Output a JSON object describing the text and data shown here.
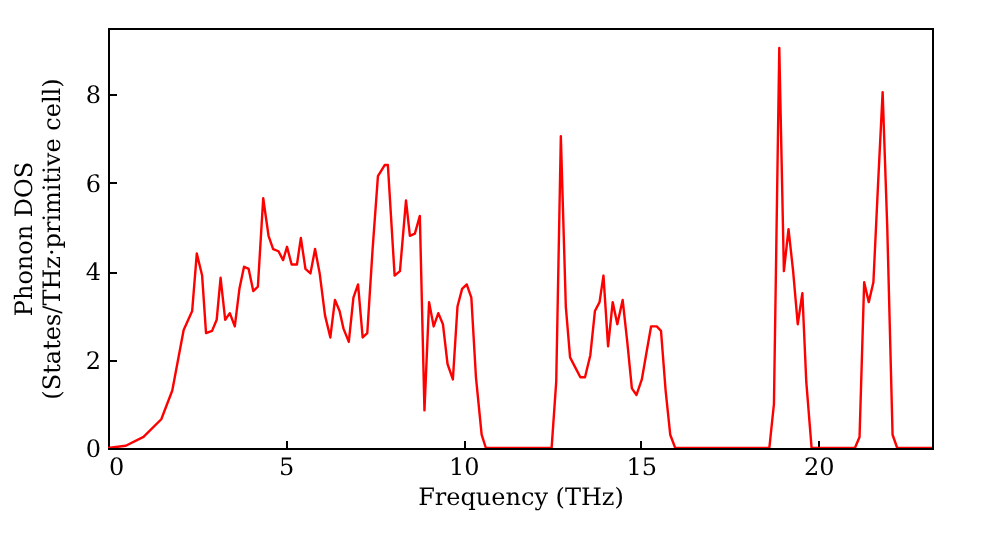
{
  "chart_data": {
    "type": "line",
    "xlabel": "Frequency (THz)",
    "ylabel": "Phonon DOS\n(States/THz·primitive cell)",
    "xlim": [
      0,
      23.2
    ],
    "xticks": [
      0,
      5,
      10,
      15,
      20
    ],
    "ylim": [
      0,
      9.5
    ],
    "yticks": [
      0,
      2,
      4,
      6,
      8
    ],
    "grid": false,
    "marker": "none",
    "line_style": "solid",
    "x": [
      0,
      0.5,
      1,
      1.5,
      1.81,
      2.13,
      2.37,
      2.5,
      2.65,
      2.76,
      2.93,
      3.06,
      3.17,
      3.3,
      3.43,
      3.57,
      3.7,
      3.83,
      3.96,
      4.09,
      4.22,
      4.37,
      4.52,
      4.65,
      4.8,
      4.93,
      5.04,
      5.17,
      5.32,
      5.43,
      5.56,
      5.7,
      5.83,
      5.96,
      6.11,
      6.26,
      6.39,
      6.52,
      6.63,
      6.78,
      6.91,
      7.04,
      7.17,
      7.3,
      7.45,
      7.6,
      7.79,
      7.88,
      8.07,
      8.22,
      8.39,
      8.5,
      8.64,
      8.78,
      8.91,
      9.04,
      9.17,
      9.3,
      9.43,
      9.56,
      9.71,
      9.84,
      9.97,
      10.1,
      10.23,
      10.36,
      10.52,
      10.64,
      12.49,
      12.62,
      12.75,
      12.89,
      13.01,
      13.17,
      13.3,
      13.43,
      13.58,
      13.71,
      13.84,
      13.95,
      14.08,
      14.21,
      14.34,
      14.49,
      14.62,
      14.75,
      14.88,
      15.03,
      15.17,
      15.29,
      15.45,
      15.57,
      15.7,
      15.83,
      15.97,
      18.62,
      18.75,
      18.9,
      19.03,
      19.16,
      19.29,
      19.42,
      19.55,
      19.66,
      19.81,
      21.03,
      21.16,
      21.29,
      21.42,
      21.55,
      21.68,
      21.81,
      21.94,
      22.09,
      22.22,
      23.2
    ],
    "series": [
      {
        "color": "#ff0000",
        "values": [
          0,
          0.05,
          0.25,
          0.65,
          1.3,
          2.67,
          3.1,
          4.4,
          3.9,
          2.6,
          2.65,
          2.9,
          3.85,
          2.9,
          3.05,
          2.75,
          3.6,
          4.1,
          4.05,
          3.55,
          3.65,
          5.65,
          4.8,
          4.5,
          4.45,
          4.25,
          4.55,
          4.15,
          4.15,
          4.75,
          4.05,
          3.95,
          4.5,
          3.95,
          3.0,
          2.5,
          3.35,
          3.1,
          2.7,
          2.4,
          3.4,
          3.7,
          2.5,
          2.6,
          4.5,
          6.15,
          6.4,
          6.4,
          3.9,
          4.0,
          5.6,
          4.8,
          4.85,
          5.25,
          0.85,
          3.3,
          2.75,
          3.05,
          2.8,
          1.9,
          1.55,
          3.2,
          3.6,
          3.7,
          3.4,
          1.6,
          0.3,
          0,
          0,
          1.5,
          7.05,
          3.2,
          2.05,
          1.8,
          1.6,
          1.6,
          2.1,
          3.1,
          3.3,
          3.9,
          2.3,
          3.3,
          2.8,
          3.35,
          2.4,
          1.35,
          1.2,
          1.55,
          2.2,
          2.75,
          2.75,
          2.65,
          1.3,
          0.3,
          0,
          0,
          1.0,
          9.05,
          4.0,
          4.95,
          4.0,
          2.8,
          3.5,
          1.5,
          0,
          0,
          0.25,
          3.75,
          3.3,
          3.75,
          5.95,
          8.05,
          5.0,
          0.3,
          0,
          0
        ]
      }
    ]
  }
}
